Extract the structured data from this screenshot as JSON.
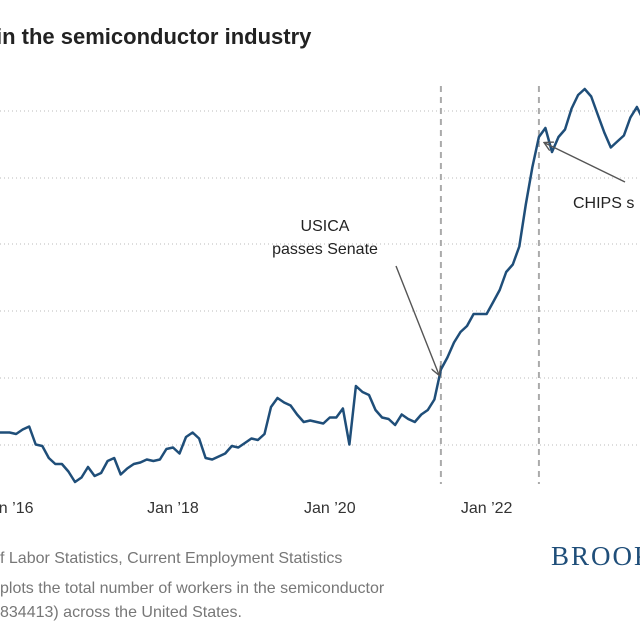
{
  "title": "in the semiconductor industry",
  "chart_data": {
    "type": "line",
    "title": "in the semiconductor industry",
    "x_tick_labels": [
      "n ’16",
      "Jan ’18",
      "Jan ’20",
      "Jan ’22"
    ],
    "x_tick_index": [
      4,
      28,
      52,
      76
    ],
    "grid": "horizontal dotted",
    "series": [
      {
        "values": [
          3.2,
          3.3,
          3.3,
          3.3,
          3.2,
          3.5,
          3.7,
          2.5,
          2.4,
          1.6,
          1.2,
          1.2,
          0.7,
          0.0,
          0.3,
          1.0,
          0.4,
          0.6,
          1.4,
          1.6,
          0.5,
          0.9,
          1.2,
          1.3,
          1.5,
          1.4,
          1.5,
          2.2,
          2.3,
          1.9,
          3.0,
          3.3,
          2.9,
          1.6,
          1.5,
          1.7,
          1.9,
          2.4,
          2.3,
          2.6,
          2.9,
          2.8,
          3.2,
          5.0,
          5.6,
          5.3,
          5.1,
          4.5,
          4.0,
          4.1,
          4.0,
          3.9,
          4.3,
          4.3,
          4.9,
          2.5,
          6.4,
          6.0,
          5.8,
          4.8,
          4.3,
          4.2,
          3.8,
          4.5,
          4.2,
          4.0,
          4.5,
          4.8,
          5.5,
          7.5,
          8.3,
          9.3,
          10.0,
          10.4,
          11.2,
          11.2,
          11.2,
          12.0,
          12.8,
          14.0,
          14.5,
          15.7,
          18.5,
          21.0,
          23.0,
          23.6,
          22.0,
          23.0,
          23.5,
          24.9,
          25.8,
          26.2,
          25.7,
          24.5,
          23.3,
          22.3,
          22.7,
          23.1,
          24.3,
          25.0,
          24.1,
          22.2
        ],
        "color": "#1f4e79"
      }
    ],
    "annotations": [
      {
        "text": [
          "USICA",
          "passes Senate"
        ],
        "x_index": 69
      },
      {
        "text": [
          "CHIPS s"
        ],
        "x_index": 84
      }
    ]
  },
  "footer": {
    "line1": "f Labor Statistics, Current Employment Statistics",
    "line2": "plots the total number of workers in the semiconductor",
    "line3": "834413) across the United States."
  },
  "brand": "BROOK",
  "colors": {
    "line": "#1f4e79",
    "grid": "#bbbbbb",
    "event_line": "#aaaaaa",
    "text": "#222222",
    "footer": "#777777"
  }
}
